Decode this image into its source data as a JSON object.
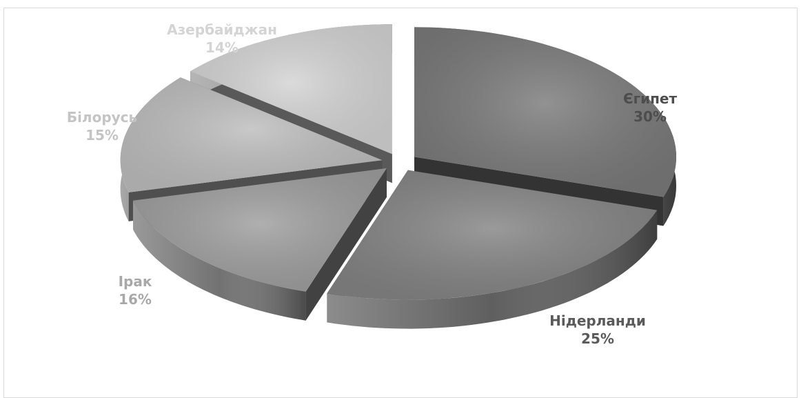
{
  "chart_data": {
    "type": "pie",
    "style": "3d-exploded",
    "categories": [
      "Єгипет",
      "Нідерланди",
      "Ірак",
      "Білорусь",
      "Азербайджан"
    ],
    "values": [
      30,
      25,
      16,
      15,
      14
    ],
    "labels": [
      "30%",
      "25%",
      "16%",
      "15%",
      "14%"
    ],
    "colors": [
      "#7a7a7a",
      "#848484",
      "#9e9e9e",
      "#bdbdbd",
      "#d3d3d3"
    ],
    "label_colors": [
      "#4d4d4d",
      "#5a5a5a",
      "#a8a8a8",
      "#c4c4c4",
      "#d4d4d4"
    ]
  }
}
